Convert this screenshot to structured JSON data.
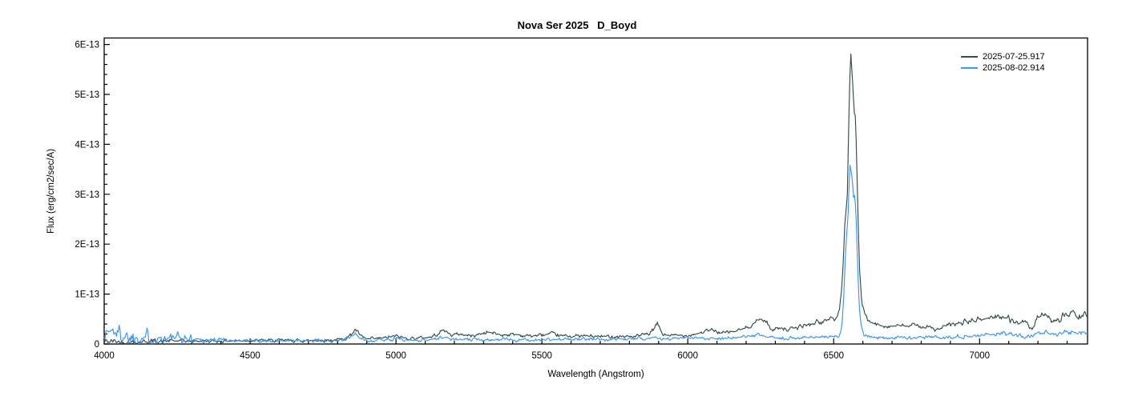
{
  "title": "Nova Ser 2025   D_Boyd",
  "chart_data": {
    "type": "line",
    "title": "Nova Ser 2025   D_Boyd",
    "xlabel": "Wavelength (Angstrom)",
    "ylabel": "Flux (erg/cm2/sec/A)",
    "units": "x: Angstrom; series flux values in units of 1E-13 erg/cm2/sec/A",
    "xlim": [
      4000,
      7370
    ],
    "ylim": [
      0,
      6.13e-13
    ],
    "grid": false,
    "legend_position": "top-right",
    "x_major_ticks": [
      4000,
      4500,
      5000,
      5500,
      6000,
      6500,
      7000
    ],
    "x_minor_step": 100,
    "y_major_ticks": [
      {
        "value": 0,
        "label": "0"
      },
      {
        "value": 1,
        "label": "1E-13"
      },
      {
        "value": 2,
        "label": "2E-13"
      },
      {
        "value": 3,
        "label": "3E-13"
      },
      {
        "value": 4,
        "label": "4E-13"
      },
      {
        "value": 5,
        "label": "5E-13"
      },
      {
        "value": 6,
        "label": "6E-13"
      }
    ],
    "y_minor_step": 0.2,
    "series": [
      {
        "name": "2025-07-25.917",
        "color": "#364a4c",
        "peak": {
          "wavelength": 6559,
          "flux_1e13": 5.78
        },
        "anchors": [
          [
            4000,
            0.05
          ],
          [
            4100,
            0.05
          ],
          [
            4200,
            0.06
          ],
          [
            4300,
            0.06
          ],
          [
            4400,
            0.06
          ],
          [
            4500,
            0.07
          ],
          [
            4600,
            0.07
          ],
          [
            4700,
            0.07
          ],
          [
            4780,
            0.08
          ],
          [
            4820,
            0.1
          ],
          [
            4845,
            0.18
          ],
          [
            4861,
            0.29
          ],
          [
            4880,
            0.15
          ],
          [
            4900,
            0.1
          ],
          [
            4930,
            0.1
          ],
          [
            4960,
            0.12
          ],
          [
            5000,
            0.16
          ],
          [
            5030,
            0.12
          ],
          [
            5080,
            0.12
          ],
          [
            5120,
            0.14
          ],
          [
            5165,
            0.28
          ],
          [
            5190,
            0.18
          ],
          [
            5220,
            0.2
          ],
          [
            5260,
            0.16
          ],
          [
            5315,
            0.24
          ],
          [
            5360,
            0.18
          ],
          [
            5400,
            0.2
          ],
          [
            5460,
            0.16
          ],
          [
            5530,
            0.2
          ],
          [
            5570,
            0.16
          ],
          [
            5640,
            0.16
          ],
          [
            5700,
            0.15
          ],
          [
            5760,
            0.16
          ],
          [
            5820,
            0.15
          ],
          [
            5870,
            0.2
          ],
          [
            5896,
            0.4
          ],
          [
            5915,
            0.18
          ],
          [
            5960,
            0.17
          ],
          [
            6000,
            0.18
          ],
          [
            6040,
            0.22
          ],
          [
            6080,
            0.28
          ],
          [
            6120,
            0.22
          ],
          [
            6160,
            0.25
          ],
          [
            6200,
            0.32
          ],
          [
            6250,
            0.5
          ],
          [
            6270,
            0.45
          ],
          [
            6290,
            0.26
          ],
          [
            6315,
            0.35
          ],
          [
            6340,
            0.28
          ],
          [
            6370,
            0.32
          ],
          [
            6400,
            0.38
          ],
          [
            6425,
            0.4
          ],
          [
            6445,
            0.45
          ],
          [
            6465,
            0.42
          ],
          [
            6490,
            0.55
          ],
          [
            6505,
            0.48
          ],
          [
            6513,
            0.55
          ],
          [
            6520,
            0.7
          ],
          [
            6530,
            1.3
          ],
          [
            6538,
            2.4
          ],
          [
            6543,
            2.72
          ],
          [
            6547,
            3.0
          ],
          [
            6551,
            4.2
          ],
          [
            6555,
            5.3
          ],
          [
            6559,
            5.78
          ],
          [
            6563,
            5.55
          ],
          [
            6567,
            5.0
          ],
          [
            6571,
            4.6
          ],
          [
            6574,
            4.5
          ],
          [
            6578,
            3.8
          ],
          [
            6583,
            2.6
          ],
          [
            6589,
            1.5
          ],
          [
            6596,
            0.85
          ],
          [
            6605,
            0.6
          ],
          [
            6615,
            0.48
          ],
          [
            6630,
            0.42
          ],
          [
            6650,
            0.38
          ],
          [
            6700,
            0.36
          ],
          [
            6750,
            0.36
          ],
          [
            6800,
            0.37
          ],
          [
            6857,
            0.28
          ],
          [
            6880,
            0.35
          ],
          [
            6920,
            0.4
          ],
          [
            6960,
            0.45
          ],
          [
            7000,
            0.48
          ],
          [
            7030,
            0.52
          ],
          [
            7068,
            0.58
          ],
          [
            7100,
            0.5
          ],
          [
            7140,
            0.42
          ],
          [
            7170,
            0.38
          ],
          [
            7186,
            0.26
          ],
          [
            7200,
            0.58
          ],
          [
            7230,
            0.5
          ],
          [
            7260,
            0.48
          ],
          [
            7290,
            0.55
          ],
          [
            7320,
            0.62
          ],
          [
            7340,
            0.52
          ],
          [
            7370,
            0.58
          ]
        ]
      },
      {
        "name": "2025-08-02.914",
        "color": "#3a96ee",
        "peak": {
          "wavelength": 6556,
          "flux_1e13": 3.58
        },
        "anchors": [
          [
            4000,
            0.22
          ],
          [
            4030,
            0.28
          ],
          [
            4060,
            0.18
          ],
          [
            4100,
            0.16
          ],
          [
            4150,
            0.14
          ],
          [
            4200,
            0.13
          ],
          [
            4250,
            0.11
          ],
          [
            4300,
            0.1
          ],
          [
            4350,
            0.09
          ],
          [
            4400,
            0.08
          ],
          [
            4500,
            0.07
          ],
          [
            4600,
            0.06
          ],
          [
            4700,
            0.06
          ],
          [
            4780,
            0.07
          ],
          [
            4820,
            0.09
          ],
          [
            4845,
            0.14
          ],
          [
            4861,
            0.21
          ],
          [
            4880,
            0.1
          ],
          [
            4900,
            0.07
          ],
          [
            4960,
            0.08
          ],
          [
            5000,
            0.11
          ],
          [
            5040,
            0.08
          ],
          [
            5100,
            0.08
          ],
          [
            5165,
            0.13
          ],
          [
            5200,
            0.09
          ],
          [
            5260,
            0.08
          ],
          [
            5315,
            0.1
          ],
          [
            5400,
            0.08
          ],
          [
            5460,
            0.08
          ],
          [
            5530,
            0.09
          ],
          [
            5600,
            0.09
          ],
          [
            5700,
            0.1
          ],
          [
            5800,
            0.1
          ],
          [
            5870,
            0.12
          ],
          [
            5896,
            0.15
          ],
          [
            5920,
            0.1
          ],
          [
            6000,
            0.11
          ],
          [
            6080,
            0.12
          ],
          [
            6160,
            0.12
          ],
          [
            6250,
            0.17
          ],
          [
            6290,
            0.12
          ],
          [
            6340,
            0.12
          ],
          [
            6400,
            0.13
          ],
          [
            6460,
            0.13
          ],
          [
            6500,
            0.14
          ],
          [
            6513,
            0.16
          ],
          [
            6520,
            0.2
          ],
          [
            6528,
            0.35
          ],
          [
            6534,
            0.9
          ],
          [
            6539,
            1.6
          ],
          [
            6543,
            2.1
          ],
          [
            6546,
            2.3
          ],
          [
            6549,
            2.5
          ],
          [
            6553,
            3.2
          ],
          [
            6556,
            3.58
          ],
          [
            6560,
            3.45
          ],
          [
            6564,
            3.3
          ],
          [
            6568,
            2.95
          ],
          [
            6572,
            2.9
          ],
          [
            6576,
            2.7
          ],
          [
            6580,
            2.0
          ],
          [
            6585,
            1.1
          ],
          [
            6590,
            0.55
          ],
          [
            6596,
            0.3
          ],
          [
            6604,
            0.18
          ],
          [
            6615,
            0.14
          ],
          [
            6640,
            0.12
          ],
          [
            6700,
            0.13
          ],
          [
            6800,
            0.13
          ],
          [
            6880,
            0.14
          ],
          [
            6940,
            0.16
          ],
          [
            7000,
            0.17
          ],
          [
            7068,
            0.21
          ],
          [
            7100,
            0.2
          ],
          [
            7140,
            0.18
          ],
          [
            7186,
            0.13
          ],
          [
            7200,
            0.24
          ],
          [
            7250,
            0.21
          ],
          [
            7300,
            0.23
          ],
          [
            7340,
            0.25
          ],
          [
            7370,
            0.22
          ]
        ]
      }
    ]
  }
}
